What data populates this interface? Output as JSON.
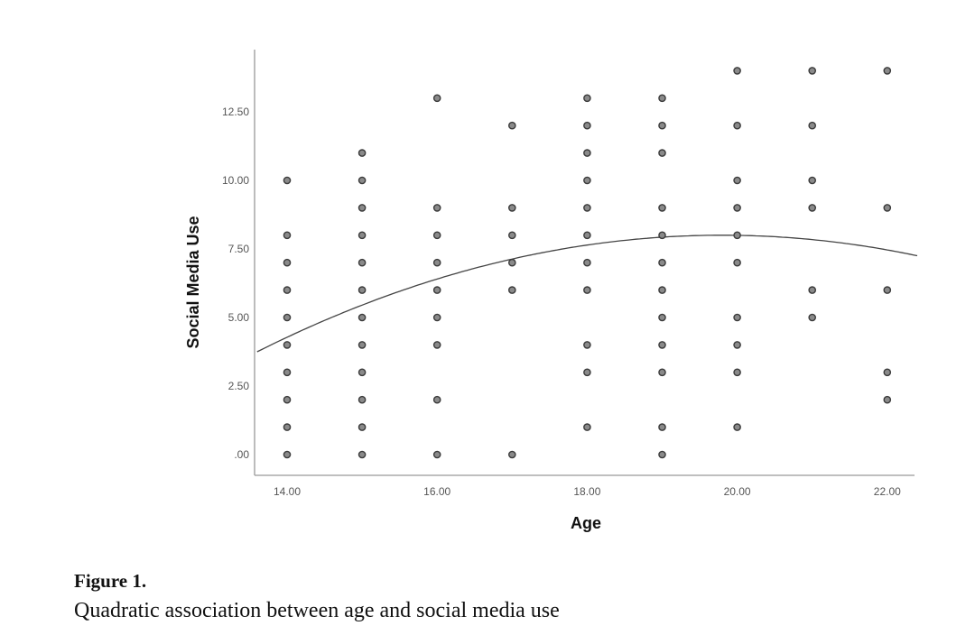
{
  "chart_data": {
    "type": "scatter",
    "xlabel": "Age",
    "ylabel": "Social Media Use",
    "xlim": [
      13.6,
      22.4
    ],
    "ylim": [
      -0.8,
      14.7
    ],
    "x_ticks": [
      "14.00",
      "16.00",
      "18.00",
      "20.00",
      "22.00"
    ],
    "x_tick_values": [
      14,
      16,
      18,
      20,
      22
    ],
    "y_ticks": [
      ".00",
      "2.50",
      "5.00",
      "7.50",
      "10.00",
      "12.50"
    ],
    "y_tick_values": [
      0,
      2.5,
      5,
      7.5,
      10,
      12.5
    ],
    "grid": false,
    "points": {
      "14": [
        0,
        1,
        2,
        3,
        4,
        5,
        6,
        7,
        8,
        10
      ],
      "15": [
        0,
        1,
        2,
        3,
        4,
        5,
        6,
        7,
        8,
        9,
        10,
        11
      ],
      "16": [
        0,
        2,
        4,
        5,
        6,
        7,
        8,
        9,
        13
      ],
      "17": [
        0,
        6,
        7,
        8,
        9,
        12
      ],
      "18": [
        1,
        3,
        4,
        6,
        7,
        8,
        9,
        10,
        11,
        12,
        13
      ],
      "19": [
        0,
        1,
        3,
        4,
        5,
        6,
        7,
        8,
        9,
        11,
        12,
        13
      ],
      "20": [
        1,
        3,
        4,
        5,
        7,
        8,
        9,
        10,
        12,
        14
      ],
      "21": [
        5,
        6,
        9,
        10,
        12,
        14
      ],
      "22": [
        2,
        3,
        6,
        9,
        14
      ]
    },
    "fit": {
      "type": "quadratic",
      "vertex_x": 19.8,
      "vertex_y": 8.0,
      "a": -0.1106
    },
    "colors": {
      "point_fill": "#8a8a8a",
      "point_stroke": "#3a3a3a",
      "fit_line": "#444444",
      "axis": "#999999"
    }
  },
  "caption": {
    "label": "Figure 1.",
    "text": "Quadratic association between age and social media use"
  }
}
